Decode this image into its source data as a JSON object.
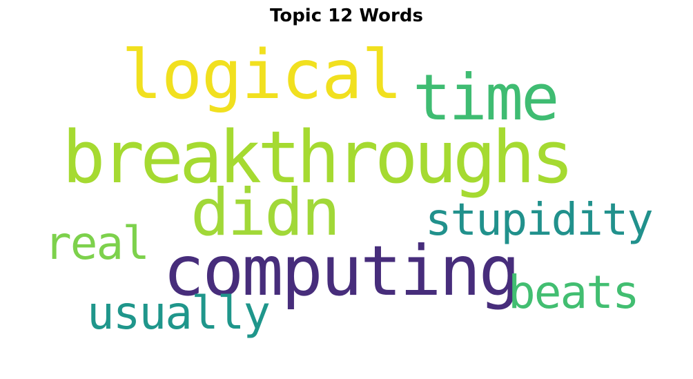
{
  "title": "Topic 12 Words",
  "words": {
    "logical": {
      "text": "logical",
      "color": "#f1e01f"
    },
    "time": {
      "text": "time",
      "color": "#3fbc72"
    },
    "breakthroughs": {
      "text": "breakthroughs",
      "color": "#a5da31"
    },
    "didn": {
      "text": "didn",
      "color": "#a1d838"
    },
    "stupidity": {
      "text": "stupidity",
      "color": "#21918c"
    },
    "real": {
      "text": "real",
      "color": "#7dd14c"
    },
    "computing": {
      "text": "computing",
      "color": "#472d7b"
    },
    "beats": {
      "text": "beats",
      "color": "#42be71"
    },
    "usually": {
      "text": "usually",
      "color": "#1f968b"
    }
  }
}
